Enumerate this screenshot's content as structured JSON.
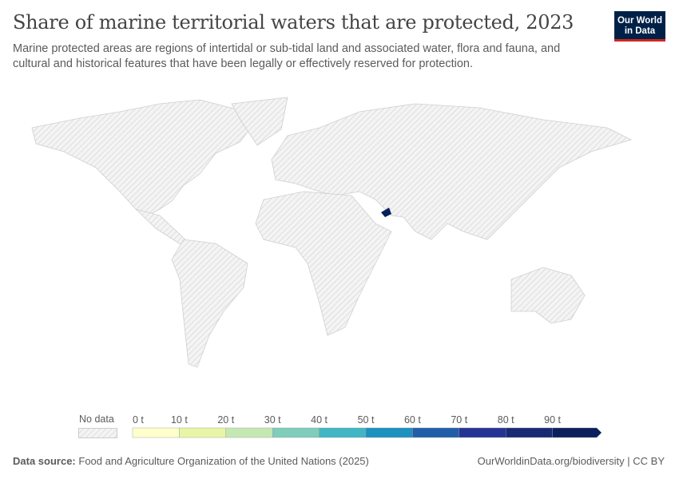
{
  "header": {
    "title": "Share of marine territorial waters that are protected, 2023",
    "subtitle": "Marine protected areas are regions of intertidal or sub-tidal land and associated water, flora and fauna, and cultural and historical features that have been legally or effectively reserved for protection.",
    "logo": "Our World in Data"
  },
  "map": {
    "highlighted_country": "United Arab Emirates",
    "highlight_color": "#0a1f5c",
    "no_data_color": "#e6e6e6"
  },
  "legend": {
    "no_data_label": "No data",
    "ticks": [
      "0 t",
      "10 t",
      "20 t",
      "30 t",
      "40 t",
      "50 t",
      "60 t",
      "70 t",
      "80 t",
      "90 t"
    ],
    "colors": [
      "#ffffcc",
      "#e9f5a6",
      "#c5e8b2",
      "#7fcdbb",
      "#41b6c4",
      "#1d91c0",
      "#225ea8",
      "#253494",
      "#172a73",
      "#0a1f5c"
    ]
  },
  "footer": {
    "source_label": "Data source:",
    "source": "Food and Agriculture Organization of the United Nations (2025)",
    "url": "OurWorldinData.org/biodiversity | CC BY"
  }
}
